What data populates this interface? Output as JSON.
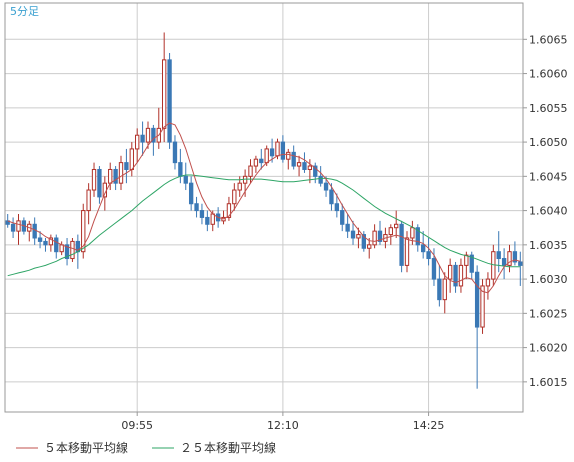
{
  "chart_data": {
    "type": "candlestick",
    "timeframe_label": "5分足",
    "y_range": [
      1.60106,
      1.60703
    ],
    "y_ticks": [
      "1.6065",
      "1.6060",
      "1.6055",
      "1.6050",
      "1.6045",
      "1.6040",
      "1.6035",
      "1.6030",
      "1.6025",
      "1.6020",
      "1.6015"
    ],
    "x_ticks": [
      {
        "label": "09:55",
        "index": 24
      },
      {
        "label": "12:10",
        "index": 51
      },
      {
        "label": "14:25",
        "index": 78
      }
    ],
    "grid": true,
    "legend_position": "bottom-left",
    "colors": {
      "up_candle": "#b03028",
      "down_candle": "#3a78b5",
      "ma5": "#c0504d",
      "ma25": "#2ea566",
      "grid": "#cccccc",
      "timeframe_label": "#3aa0d0"
    },
    "series": [
      {
        "name": "５本移動平均線",
        "color": "#c0504d"
      },
      {
        "name": "２５本移動平均線",
        "color": "#2ea566"
      }
    ],
    "candles": [
      [
        1.60385,
        1.60395,
        1.60375,
        1.6038
      ],
      [
        1.6038,
        1.6039,
        1.6036,
        1.6037
      ],
      [
        1.6037,
        1.60395,
        1.6035,
        1.60385
      ],
      [
        1.60385,
        1.6039,
        1.60365,
        1.6037
      ],
      [
        1.6037,
        1.60385,
        1.60355,
        1.6038
      ],
      [
        1.6038,
        1.6039,
        1.6035,
        1.6036
      ],
      [
        1.6036,
        1.6037,
        1.60345,
        1.60355
      ],
      [
        1.60355,
        1.6036,
        1.6034,
        1.6035
      ],
      [
        1.6035,
        1.60365,
        1.6034,
        1.6036
      ],
      [
        1.6036,
        1.60365,
        1.6033,
        1.6034
      ],
      [
        1.6034,
        1.60355,
        1.60335,
        1.6035
      ],
      [
        1.6035,
        1.6036,
        1.6032,
        1.6033
      ],
      [
        1.6033,
        1.6036,
        1.60325,
        1.60355
      ],
      [
        1.60355,
        1.60365,
        1.60315,
        1.6034
      ],
      [
        1.6034,
        1.6041,
        1.6033,
        1.604
      ],
      [
        1.604,
        1.6044,
        1.6038,
        1.6043
      ],
      [
        1.6043,
        1.6047,
        1.6042,
        1.6046
      ],
      [
        1.6046,
        1.60465,
        1.6041,
        1.6042
      ],
      [
        1.6042,
        1.6045,
        1.604,
        1.6044
      ],
      [
        1.6044,
        1.6047,
        1.6043,
        1.6046
      ],
      [
        1.6046,
        1.60465,
        1.6043,
        1.6044
      ],
      [
        1.6044,
        1.6048,
        1.6043,
        1.6047
      ],
      [
        1.6047,
        1.6049,
        1.6044,
        1.6046
      ],
      [
        1.6046,
        1.605,
        1.6045,
        1.6049
      ],
      [
        1.6049,
        1.6052,
        1.6047,
        1.6051
      ],
      [
        1.6051,
        1.6053,
        1.6048,
        1.605
      ],
      [
        1.605,
        1.6053,
        1.6049,
        1.6052
      ],
      [
        1.6052,
        1.60525,
        1.6048,
        1.605
      ],
      [
        1.605,
        1.6055,
        1.6049,
        1.6052
      ],
      [
        1.6052,
        1.6066,
        1.605,
        1.6062
      ],
      [
        1.6062,
        1.6063,
        1.6049,
        1.605
      ],
      [
        1.605,
        1.6051,
        1.6046,
        1.6047
      ],
      [
        1.6047,
        1.6049,
        1.6044,
        1.6045
      ],
      [
        1.6045,
        1.6047,
        1.6043,
        1.6044
      ],
      [
        1.6044,
        1.6045,
        1.604,
        1.6041
      ],
      [
        1.6041,
        1.6042,
        1.6039,
        1.604
      ],
      [
        1.604,
        1.6041,
        1.6038,
        1.6039
      ],
      [
        1.6039,
        1.604,
        1.6037,
        1.6038
      ],
      [
        1.6038,
        1.604,
        1.6037,
        1.60395
      ],
      [
        1.60395,
        1.60405,
        1.60375,
        1.60385
      ],
      [
        1.60385,
        1.604,
        1.6038,
        1.6039
      ],
      [
        1.6039,
        1.6042,
        1.60385,
        1.6041
      ],
      [
        1.6041,
        1.6044,
        1.604,
        1.6043
      ],
      [
        1.6043,
        1.6045,
        1.6042,
        1.6044
      ],
      [
        1.6044,
        1.6046,
        1.6042,
        1.6045
      ],
      [
        1.6045,
        1.60475,
        1.6044,
        1.60465
      ],
      [
        1.60465,
        1.6048,
        1.60455,
        1.60475
      ],
      [
        1.60475,
        1.6049,
        1.6046,
        1.6047
      ],
      [
        1.6047,
        1.60495,
        1.60465,
        1.6049
      ],
      [
        1.6049,
        1.60505,
        1.6047,
        1.6048
      ],
      [
        1.6048,
        1.60505,
        1.60475,
        1.605
      ],
      [
        1.605,
        1.6051,
        1.6047,
        1.60475
      ],
      [
        1.60475,
        1.6049,
        1.6046,
        1.60485
      ],
      [
        1.60485,
        1.60495,
        1.6046,
        1.60465
      ],
      [
        1.60465,
        1.6048,
        1.6045,
        1.6047
      ],
      [
        1.6047,
        1.60485,
        1.60455,
        1.6046
      ],
      [
        1.6046,
        1.60475,
        1.6044,
        1.60465
      ],
      [
        1.60465,
        1.6047,
        1.6044,
        1.6045
      ],
      [
        1.6045,
        1.60465,
        1.60435,
        1.6044
      ],
      [
        1.6044,
        1.6045,
        1.6042,
        1.6043
      ],
      [
        1.6043,
        1.6044,
        1.604,
        1.6041
      ],
      [
        1.6041,
        1.60425,
        1.6039,
        1.604
      ],
      [
        1.604,
        1.6041,
        1.6037,
        1.6038
      ],
      [
        1.6038,
        1.60395,
        1.6036,
        1.6037
      ],
      [
        1.6037,
        1.60385,
        1.6035,
        1.6036
      ],
      [
        1.6036,
        1.60375,
        1.60345,
        1.60365
      ],
      [
        1.60365,
        1.6037,
        1.6034,
        1.60345
      ],
      [
        1.60345,
        1.6036,
        1.6033,
        1.6035
      ],
      [
        1.6035,
        1.6038,
        1.60345,
        1.6037
      ],
      [
        1.6037,
        1.60385,
        1.6035,
        1.60355
      ],
      [
        1.60355,
        1.60375,
        1.60345,
        1.60365
      ],
      [
        1.60365,
        1.6038,
        1.6035,
        1.60375
      ],
      [
        1.60375,
        1.604,
        1.6036,
        1.6038
      ],
      [
        1.6038,
        1.60385,
        1.6031,
        1.6032
      ],
      [
        1.6032,
        1.6037,
        1.6031,
        1.6036
      ],
      [
        1.6036,
        1.60385,
        1.6035,
        1.60375
      ],
      [
        1.60375,
        1.6038,
        1.6034,
        1.6035
      ],
      [
        1.6035,
        1.6037,
        1.6033,
        1.6034
      ],
      [
        1.6034,
        1.6036,
        1.6032,
        1.6033
      ],
      [
        1.6033,
        1.60345,
        1.6029,
        1.603
      ],
      [
        1.603,
        1.6032,
        1.6026,
        1.6027
      ],
      [
        1.6027,
        1.6031,
        1.6025,
        1.603
      ],
      [
        1.603,
        1.6033,
        1.6028,
        1.6032
      ],
      [
        1.6032,
        1.60325,
        1.6028,
        1.6029
      ],
      [
        1.6029,
        1.6033,
        1.6028,
        1.6032
      ],
      [
        1.6032,
        1.6034,
        1.603,
        1.60335
      ],
      [
        1.60335,
        1.6034,
        1.603,
        1.6031
      ],
      [
        1.6031,
        1.6032,
        1.6014,
        1.6023
      ],
      [
        1.6023,
        1.603,
        1.6022,
        1.6029
      ],
      [
        1.6029,
        1.6031,
        1.6027,
        1.603
      ],
      [
        1.603,
        1.6035,
        1.6029,
        1.6034
      ],
      [
        1.6034,
        1.6037,
        1.6031,
        1.6033
      ],
      [
        1.6033,
        1.60345,
        1.603,
        1.6032
      ],
      [
        1.6032,
        1.6035,
        1.6031,
        1.6034
      ],
      [
        1.6034,
        1.60355,
        1.6032,
        1.60325
      ],
      [
        1.60325,
        1.6034,
        1.6029,
        1.6032
      ]
    ],
    "ma5": [
      1.60385,
      1.60382,
      1.6038,
      1.60378,
      1.60375,
      1.60372,
      1.60368,
      1.60362,
      1.60358,
      1.60354,
      1.6035,
      1.60347,
      1.60345,
      1.60342,
      1.60348,
      1.60362,
      1.60385,
      1.60405,
      1.60425,
      1.6044,
      1.60445,
      1.6045,
      1.60455,
      1.6046,
      1.6047,
      1.60482,
      1.60495,
      1.60505,
      1.6051,
      1.60522,
      1.60528,
      1.60525,
      1.6051,
      1.6049,
      1.60465,
      1.6044,
      1.6042,
      1.60405,
      1.60395,
      1.6039,
      1.60388,
      1.60392,
      1.60402,
      1.60415,
      1.60428,
      1.6044,
      1.60452,
      1.60462,
      1.6047,
      1.60475,
      1.6048,
      1.60482,
      1.60482,
      1.6048,
      1.60478,
      1.60474,
      1.60468,
      1.60462,
      1.60455,
      1.60446,
      1.60435,
      1.60422,
      1.60408,
      1.60395,
      1.60382,
      1.60372,
      1.60362,
      1.60356,
      1.60355,
      1.60357,
      1.6036,
      1.60362,
      1.60364,
      1.60362,
      1.60358,
      1.60356,
      1.60355,
      1.60352,
      1.60345,
      1.60335,
      1.6032,
      1.60305,
      1.60298,
      1.60295,
      1.60298,
      1.60302,
      1.603,
      1.6029,
      1.60282,
      1.6028,
      1.6029,
      1.60305,
      1.60318,
      1.60325,
      1.60328,
      1.60326
    ],
    "ma25": [
      1.60305,
      1.60307,
      1.60309,
      1.60311,
      1.60313,
      1.60316,
      1.60318,
      1.6032,
      1.60323,
      1.60326,
      1.6033,
      1.60333,
      1.60336,
      1.6034,
      1.60345,
      1.6035,
      1.60357,
      1.60364,
      1.6037,
      1.60376,
      1.60382,
      1.60388,
      1.60394,
      1.604,
      1.60407,
      1.60414,
      1.6042,
      1.60426,
      1.60432,
      1.60438,
      1.60443,
      1.60447,
      1.6045,
      1.60452,
      1.60452,
      1.60451,
      1.6045,
      1.60449,
      1.60448,
      1.60447,
      1.60446,
      1.60445,
      1.60445,
      1.60445,
      1.60446,
      1.60446,
      1.60446,
      1.60446,
      1.60445,
      1.60444,
      1.60443,
      1.60442,
      1.60442,
      1.60442,
      1.60443,
      1.60444,
      1.60445,
      1.60446,
      1.60447,
      1.60447,
      1.60446,
      1.60444,
      1.6044,
      1.60435,
      1.6043,
      1.60424,
      1.60418,
      1.60412,
      1.60406,
      1.60401,
      1.60396,
      1.60392,
      1.60388,
      1.60384,
      1.6038,
      1.60376,
      1.60371,
      1.60366,
      1.60361,
      1.60356,
      1.60351,
      1.60346,
      1.60342,
      1.60339,
      1.60336,
      1.60334,
      1.60332,
      1.60329,
      1.60326,
      1.60323,
      1.60321,
      1.6032,
      1.60319,
      1.60318,
      1.60318,
      1.60318
    ]
  }
}
